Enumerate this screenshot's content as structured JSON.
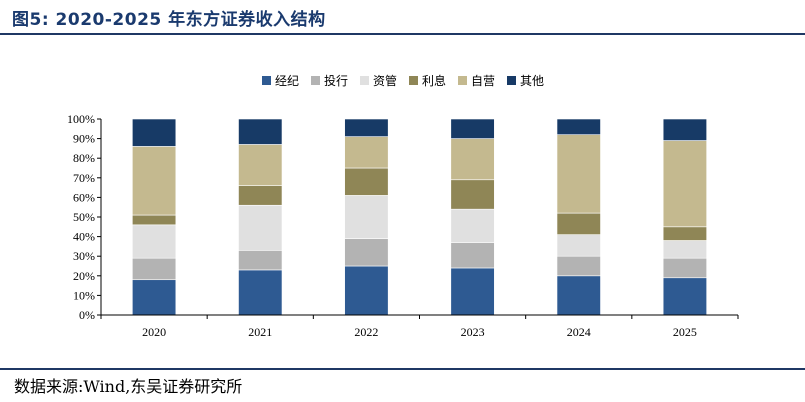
{
  "figure_title": "图5:  2020-2025 年东方证券收入结构",
  "source": "数据来源:Wind,东吴证券研究所",
  "chart_data": {
    "type": "bar",
    "stacked": true,
    "categories": [
      "2020",
      "2021",
      "2022",
      "2023",
      "2024",
      "2025"
    ],
    "ylim": [
      0,
      100
    ],
    "y_ticks": [
      "0%",
      "10%",
      "20%",
      "30%",
      "40%",
      "50%",
      "60%",
      "70%",
      "80%",
      "90%",
      "100%"
    ],
    "legend_position": "top-center",
    "series": [
      {
        "name": "经纪",
        "color": "#2e5a92",
        "values": [
          18,
          23,
          25,
          24,
          20,
          19
        ]
      },
      {
        "name": "投行",
        "color": "#b3b3b3",
        "values": [
          11,
          10,
          14,
          13,
          10,
          10
        ]
      },
      {
        "name": "资管",
        "color": "#e0e0e0",
        "values": [
          17,
          23,
          22,
          17,
          11,
          9
        ]
      },
      {
        "name": "利息",
        "color": "#8f8656",
        "values": [
          5,
          10,
          14,
          15,
          11,
          7
        ]
      },
      {
        "name": "自营",
        "color": "#c4b98f",
        "values": [
          35,
          21,
          16,
          21,
          40,
          44
        ]
      },
      {
        "name": "其他",
        "color": "#173a66",
        "values": [
          14,
          13,
          9,
          10,
          8,
          11
        ]
      }
    ]
  }
}
